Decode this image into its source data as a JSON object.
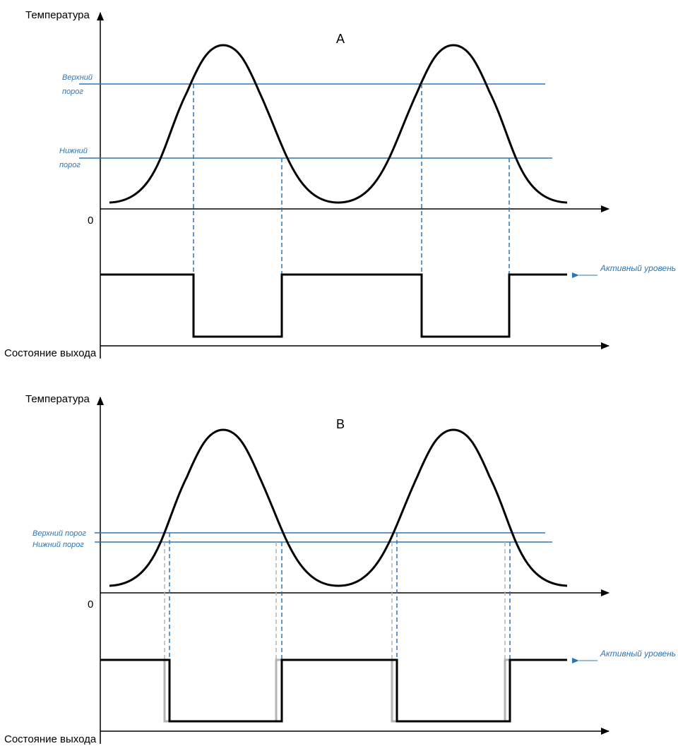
{
  "colors": {
    "curve": "#000000",
    "threshold": "#2e75b6",
    "drop_line": "#2e75b6",
    "alt_output": "#b3b3b3"
  },
  "panel_a": {
    "label": "A",
    "y_axis_label": "Температура",
    "x_axis_label": "Состояние выхода",
    "zero_label": "0",
    "upper_threshold_label_1": "Верхний",
    "upper_threshold_label_2": "порог",
    "lower_threshold_label_1": "Нижний",
    "lower_threshold_label_2": "порог",
    "active_level_label": "Активный уровень"
  },
  "panel_b": {
    "label": "B",
    "y_axis_label": "Температура",
    "x_axis_label": "Состояние выхода",
    "zero_label": "0",
    "upper_threshold_label": "Верхний порог",
    "lower_threshold_label": "Нижний порог",
    "active_level_label": "Активный уровень"
  }
}
